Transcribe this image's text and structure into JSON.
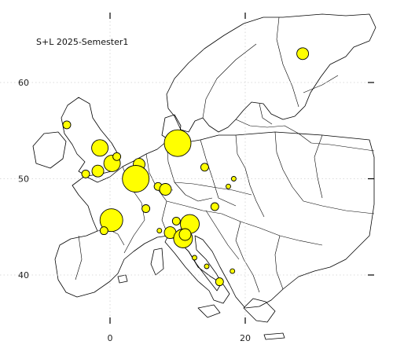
{
  "title": "S+L 2025-Semester1",
  "axes": {
    "lon_ticks": [
      0,
      20
    ],
    "lat_ticks": [
      40,
      50,
      60
    ],
    "lon_range": [
      -16,
      38
    ],
    "lat_range": [
      35,
      68
    ],
    "grid": true
  },
  "colors": {
    "marker_fill": "#ffff00",
    "marker_stroke": "#000000",
    "coastline": "#000000",
    "grid": "#cfcfcf"
  },
  "markers": [
    {
      "lon": 28.5,
      "lat": 63.0,
      "size": 3
    },
    {
      "lon": -6.4,
      "lat": 55.6,
      "size": 2
    },
    {
      "lon": -1.5,
      "lat": 53.2,
      "size": 4
    },
    {
      "lon": 0.3,
      "lat": 51.6,
      "size": 4
    },
    {
      "lon": 1.0,
      "lat": 52.3,
      "size": 2
    },
    {
      "lon": -1.8,
      "lat": 50.8,
      "size": 3
    },
    {
      "lon": -3.6,
      "lat": 50.5,
      "size": 2
    },
    {
      "lon": 10.0,
      "lat": 53.7,
      "size": 7
    },
    {
      "lon": 4.3,
      "lat": 51.5,
      "size": 3
    },
    {
      "lon": 3.8,
      "lat": 50.0,
      "size": 7
    },
    {
      "lon": 14.0,
      "lat": 51.2,
      "size": 2
    },
    {
      "lon": 7.1,
      "lat": 49.2,
      "size": 2
    },
    {
      "lon": 8.2,
      "lat": 48.9,
      "size": 3
    },
    {
      "lon": 15.5,
      "lat": 47.1,
      "size": 2
    },
    {
      "lon": 17.5,
      "lat": 49.2,
      "size": 1
    },
    {
      "lon": 18.3,
      "lat": 50.0,
      "size": 1
    },
    {
      "lon": 0.2,
      "lat": 45.7,
      "size": 6
    },
    {
      "lon": -0.9,
      "lat": 44.6,
      "size": 2
    },
    {
      "lon": 5.3,
      "lat": 46.9,
      "size": 2
    },
    {
      "lon": 9.8,
      "lat": 45.6,
      "size": 2
    },
    {
      "lon": 11.8,
      "lat": 45.3,
      "size": 5
    },
    {
      "lon": 8.9,
      "lat": 44.4,
      "size": 3
    },
    {
      "lon": 10.8,
      "lat": 43.8,
      "size": 5
    },
    {
      "lon": 11.1,
      "lat": 44.2,
      "size": 3
    },
    {
      "lon": 7.3,
      "lat": 44.6,
      "size": 1
    },
    {
      "lon": 12.5,
      "lat": 41.8,
      "size": 1
    },
    {
      "lon": 14.3,
      "lat": 40.9,
      "size": 1
    },
    {
      "lon": 16.2,
      "lat": 39.3,
      "size": 2
    },
    {
      "lon": 18.1,
      "lat": 40.4,
      "size": 1
    }
  ]
}
